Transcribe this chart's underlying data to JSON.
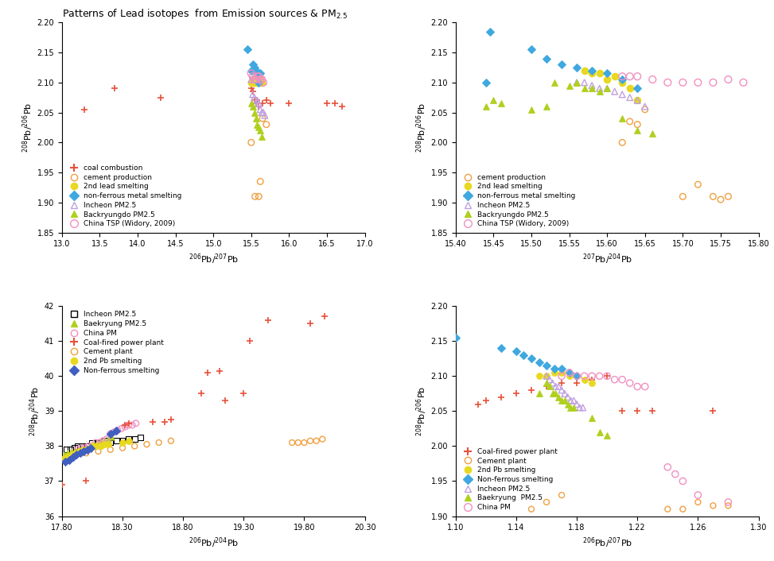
{
  "title": "Patterns of Lead isotopes  from Emission sources & PM$_{2.5}$",
  "panel1": {
    "xlabel": "$^{206}$Pb/$^{207}$Pb",
    "ylabel": "$^{208}$Pb/$^{206}$Pb",
    "xlim": [
      13.0,
      17.0
    ],
    "ylim": [
      1.85,
      2.2
    ],
    "xticks": [
      13.0,
      13.5,
      14.0,
      14.5,
      15.0,
      15.5,
      16.0,
      16.5,
      17.0
    ],
    "yticks": [
      1.85,
      1.9,
      1.95,
      2.0,
      2.05,
      2.1,
      2.15,
      2.2
    ],
    "coal_combustion": {
      "x": [
        13.3,
        13.7,
        14.3,
        15.5,
        15.52,
        15.54,
        15.56,
        15.58,
        15.6,
        15.65,
        15.7,
        15.75,
        16.0,
        16.5,
        16.6,
        16.7
      ],
      "y": [
        2.055,
        2.09,
        2.075,
        2.09,
        2.085,
        2.07,
        2.065,
        2.07,
        2.06,
        2.065,
        2.07,
        2.065,
        2.065,
        2.065,
        2.065,
        2.06
      ]
    },
    "cement_production": {
      "x": [
        15.5,
        15.55,
        15.6,
        15.62,
        15.65,
        15.7
      ],
      "y": [
        2.0,
        1.91,
        1.91,
        1.935,
        2.04,
        2.03
      ]
    },
    "2nd_lead_smelting": {
      "x": [
        15.5,
        15.52,
        15.54,
        15.56,
        15.58,
        15.6,
        15.62,
        15.64
      ],
      "y": [
        2.1,
        2.105,
        2.1,
        2.11,
        2.1,
        2.115,
        2.105,
        2.1
      ]
    },
    "non_ferrous": {
      "x": [
        15.45,
        15.5,
        15.52,
        15.54,
        15.56,
        15.58,
        15.6,
        15.62
      ],
      "y": [
        2.155,
        2.12,
        2.13,
        2.125,
        2.12,
        2.115,
        2.1,
        2.115
      ]
    },
    "incheon_pm25": {
      "x": [
        15.5,
        15.52,
        15.54,
        15.56,
        15.58,
        15.6,
        15.62,
        15.64,
        15.66,
        15.68
      ],
      "y": [
        2.105,
        2.08,
        2.075,
        2.065,
        2.07,
        2.065,
        2.055,
        2.05,
        2.05,
        2.045
      ]
    },
    "backryungdo_pm25": {
      "x": [
        15.5,
        15.52,
        15.54,
        15.56,
        15.58,
        15.6,
        15.62,
        15.64
      ],
      "y": [
        2.065,
        2.06,
        2.05,
        2.04,
        2.03,
        2.025,
        2.02,
        2.01
      ]
    },
    "china_tsp": {
      "x": [
        15.5,
        15.52,
        15.54,
        15.56,
        15.58,
        15.6,
        15.62,
        15.64,
        15.66
      ],
      "y": [
        2.115,
        2.11,
        2.105,
        2.105,
        2.11,
        2.11,
        2.105,
        2.105,
        2.1
      ]
    }
  },
  "panel2": {
    "xlabel": "$^{207}$Pb/$^{204}$Pb",
    "ylabel": "$^{208}$Pb/$^{206}$Pb",
    "xlim": [
      15.4,
      15.8
    ],
    "ylim": [
      1.85,
      2.2
    ],
    "xticks": [
      15.4,
      15.45,
      15.5,
      15.55,
      15.6,
      15.65,
      15.7,
      15.75,
      15.8
    ],
    "yticks": [
      1.85,
      1.9,
      1.95,
      2.0,
      2.05,
      2.1,
      2.15,
      2.2
    ],
    "cement_production": {
      "x": [
        15.62,
        15.63,
        15.64,
        15.65,
        15.7,
        15.72,
        15.74,
        15.75,
        15.76
      ],
      "y": [
        2.0,
        2.035,
        2.03,
        2.055,
        1.91,
        1.93,
        1.91,
        1.905,
        1.91
      ]
    },
    "2nd_lead_smelting": {
      "x": [
        15.57,
        15.58,
        15.59,
        15.6,
        15.61,
        15.62,
        15.63,
        15.64
      ],
      "y": [
        2.12,
        2.115,
        2.115,
        2.105,
        2.11,
        2.1,
        2.09,
        2.07
      ]
    },
    "non_ferrous": {
      "x": [
        15.44,
        15.445,
        15.5,
        15.52,
        15.54,
        15.56,
        15.58,
        15.6,
        15.62,
        15.64
      ],
      "y": [
        2.1,
        2.185,
        2.155,
        2.14,
        2.13,
        2.125,
        2.12,
        2.115,
        2.105,
        2.09
      ]
    },
    "incheon_pm25": {
      "x": [
        15.56,
        15.57,
        15.58,
        15.59,
        15.6,
        15.61,
        15.62,
        15.63,
        15.64,
        15.65
      ],
      "y": [
        2.1,
        2.1,
        2.095,
        2.09,
        2.09,
        2.085,
        2.08,
        2.075,
        2.07,
        2.06
      ]
    },
    "backryungdo_pm25": {
      "x": [
        15.44,
        15.45,
        15.46,
        15.5,
        15.52,
        15.53,
        15.55,
        15.56,
        15.57,
        15.58,
        15.59,
        15.6,
        15.62,
        15.64,
        15.66
      ],
      "y": [
        2.06,
        2.07,
        2.065,
        2.055,
        2.06,
        2.1,
        2.095,
        2.1,
        2.09,
        2.09,
        2.085,
        2.09,
        2.04,
        2.02,
        2.015
      ]
    },
    "china_tsp": {
      "x": [
        15.62,
        15.63,
        15.64,
        15.66,
        15.68,
        15.7,
        15.72,
        15.74,
        15.76,
        15.78
      ],
      "y": [
        2.11,
        2.11,
        2.11,
        2.105,
        2.1,
        2.1,
        2.1,
        2.1,
        2.105,
        2.1
      ]
    }
  },
  "panel3": {
    "xlabel": "$^{206}$Pb/$^{204}$Pb",
    "ylabel": "$^{208}$Pb/$^{204}$Pb",
    "xlim": [
      17.8,
      20.3
    ],
    "ylim": [
      36,
      42
    ],
    "xticks": [
      17.8,
      18.3,
      18.8,
      19.3,
      19.8,
      20.3
    ],
    "yticks": [
      36,
      37,
      38,
      39,
      40,
      41,
      42
    ],
    "incheon_pm25": {
      "x": [
        17.84,
        17.87,
        17.9,
        17.93,
        17.96,
        18.0,
        18.05,
        18.1,
        18.15,
        18.2,
        18.25,
        18.3,
        18.35,
        18.4,
        18.45
      ],
      "y": [
        37.9,
        37.9,
        37.95,
        38.0,
        38.0,
        38.0,
        38.1,
        38.1,
        38.15,
        38.1,
        38.15,
        38.15,
        38.2,
        38.2,
        38.25
      ]
    },
    "baekryung_pm25": {
      "x": [
        17.82,
        17.85,
        17.88,
        17.91,
        17.94,
        17.97,
        18.0,
        18.03,
        18.06,
        18.09,
        18.12,
        18.15,
        18.18,
        18.21
      ],
      "y": [
        37.75,
        37.8,
        37.85,
        37.85,
        37.9,
        37.95,
        37.95,
        38.0,
        38.0,
        38.1,
        38.15,
        38.15,
        38.2,
        38.25
      ]
    },
    "china_pm": {
      "x": [
        17.93,
        17.96,
        17.99,
        18.02,
        18.05,
        18.08,
        18.11,
        18.14,
        18.17,
        18.2,
        18.23,
        18.26,
        18.29,
        18.32,
        18.35,
        18.38,
        18.41
      ],
      "y": [
        37.9,
        37.95,
        37.95,
        38.0,
        38.0,
        38.1,
        38.1,
        38.15,
        38.2,
        38.35,
        38.4,
        38.45,
        38.5,
        38.55,
        38.6,
        38.6,
        38.65
      ]
    },
    "coal_fired": {
      "x": [
        17.8,
        18.0,
        18.32,
        18.35,
        18.55,
        18.65,
        18.7,
        18.95,
        19.0,
        19.1,
        19.15,
        19.3,
        19.35,
        19.5,
        19.85,
        19.97
      ],
      "y": [
        36.9,
        37.0,
        38.6,
        38.65,
        38.7,
        38.7,
        38.75,
        39.5,
        40.1,
        40.15,
        39.3,
        39.5,
        41.0,
        41.6,
        41.5,
        41.7
      ]
    },
    "cement_plant": {
      "x": [
        18.0,
        18.1,
        18.2,
        18.3,
        18.4,
        18.5,
        18.6,
        18.7,
        19.7,
        19.75,
        19.8,
        19.85,
        19.9,
        19.95
      ],
      "y": [
        37.8,
        37.85,
        37.9,
        37.95,
        38.0,
        38.05,
        38.1,
        38.15,
        38.1,
        38.1,
        38.1,
        38.15,
        38.15,
        38.2
      ]
    },
    "2nd_pb_smelting": {
      "x": [
        17.82,
        17.85,
        17.88,
        17.91,
        17.94,
        17.97,
        18.0,
        18.03,
        18.06,
        18.09,
        18.12,
        18.15,
        18.18,
        18.3,
        18.35
      ],
      "y": [
        37.65,
        37.7,
        37.75,
        37.8,
        37.85,
        37.9,
        37.9,
        37.95,
        38.0,
        38.0,
        38.0,
        38.05,
        38.05,
        38.1,
        38.15
      ]
    },
    "non_ferrous": {
      "x": [
        17.83,
        17.86,
        17.89,
        17.92,
        17.95,
        17.98,
        18.01,
        18.04,
        18.2,
        18.25
      ],
      "y": [
        37.55,
        37.6,
        37.7,
        37.75,
        37.8,
        37.85,
        37.9,
        37.95,
        38.35,
        38.45
      ]
    }
  },
  "panel4": {
    "xlabel": "$^{206}$Pb/$^{207}$Pb",
    "ylabel": "$^{208}$Pb/$^{206}$Pb",
    "xlim": [
      1.1,
      1.3
    ],
    "ylim": [
      1.9,
      2.2
    ],
    "xticks": [
      1.1,
      1.14,
      1.18,
      1.22,
      1.26,
      1.3
    ],
    "yticks": [
      1.9,
      1.95,
      2.0,
      2.05,
      2.1,
      2.15,
      2.2
    ],
    "coal_fired": {
      "x": [
        1.115,
        1.12,
        1.13,
        1.14,
        1.15,
        1.16,
        1.17,
        1.18,
        1.19,
        1.2,
        1.21,
        1.22,
        1.23,
        1.27
      ],
      "y": [
        2.06,
        2.065,
        2.07,
        2.075,
        2.08,
        2.085,
        2.09,
        2.09,
        2.095,
        2.1,
        2.05,
        2.05,
        2.05,
        2.05
      ]
    },
    "cement_plant": {
      "x": [
        1.15,
        1.16,
        1.17,
        1.24,
        1.25,
        1.26,
        1.27,
        1.28
      ],
      "y": [
        1.91,
        1.92,
        1.93,
        1.91,
        1.91,
        1.92,
        1.915,
        1.915
      ]
    },
    "2nd_pb_smelting": {
      "x": [
        1.155,
        1.16,
        1.165,
        1.17,
        1.175,
        1.18,
        1.185,
        1.19
      ],
      "y": [
        2.1,
        2.1,
        2.105,
        2.105,
        2.1,
        2.1,
        2.095,
        2.09
      ]
    },
    "non_ferrous": {
      "x": [
        1.1,
        1.13,
        1.14,
        1.145,
        1.15,
        1.155,
        1.16,
        1.165,
        1.17,
        1.175,
        1.18
      ],
      "y": [
        2.155,
        2.14,
        2.135,
        2.13,
        2.125,
        2.12,
        2.115,
        2.11,
        2.11,
        2.105,
        2.1
      ]
    },
    "incheon_pm25": {
      "x": [
        1.16,
        1.162,
        1.164,
        1.166,
        1.168,
        1.17,
        1.172,
        1.174,
        1.176,
        1.178,
        1.18,
        1.182,
        1.184
      ],
      "y": [
        2.1,
        2.095,
        2.09,
        2.085,
        2.085,
        2.08,
        2.075,
        2.07,
        2.065,
        2.065,
        2.06,
        2.055,
        2.055
      ]
    },
    "baekryung_pm25": {
      "x": [
        1.155,
        1.16,
        1.162,
        1.164,
        1.166,
        1.168,
        1.17,
        1.172,
        1.174,
        1.176,
        1.178,
        1.19,
        1.195,
        1.2
      ],
      "y": [
        2.075,
        2.09,
        2.085,
        2.075,
        2.075,
        2.07,
        2.065,
        2.065,
        2.06,
        2.055,
        2.055,
        2.04,
        2.02,
        2.015
      ]
    },
    "china_pm": {
      "x": [
        1.17,
        1.175,
        1.18,
        1.185,
        1.19,
        1.195,
        1.2,
        1.205,
        1.21,
        1.215,
        1.22,
        1.225,
        1.24,
        1.245,
        1.25,
        1.26,
        1.28
      ],
      "y": [
        2.1,
        2.105,
        2.1,
        2.1,
        2.1,
        2.1,
        2.1,
        2.095,
        2.095,
        2.09,
        2.085,
        2.085,
        1.97,
        1.96,
        1.95,
        1.93,
        1.92
      ]
    }
  },
  "colors": {
    "coal_combustion": "#e8503a",
    "cement_production": "#f0a040",
    "2nd_lead_smelting": "#e8d820",
    "non_ferrous": "#40a8e0",
    "incheon_pm25": "#c0a0e0",
    "backryungdo_pm25": "#b0d020",
    "china_tsp": "#f090c0",
    "coal_fired": "#e8503a",
    "cement_plant": "#f0a040",
    "2nd_pb_smelting": "#e8d820",
    "non_ferrous_sm": "#4060c0",
    "baekryung_pm25": "#b0d020",
    "china_pm": "#f090c0"
  }
}
